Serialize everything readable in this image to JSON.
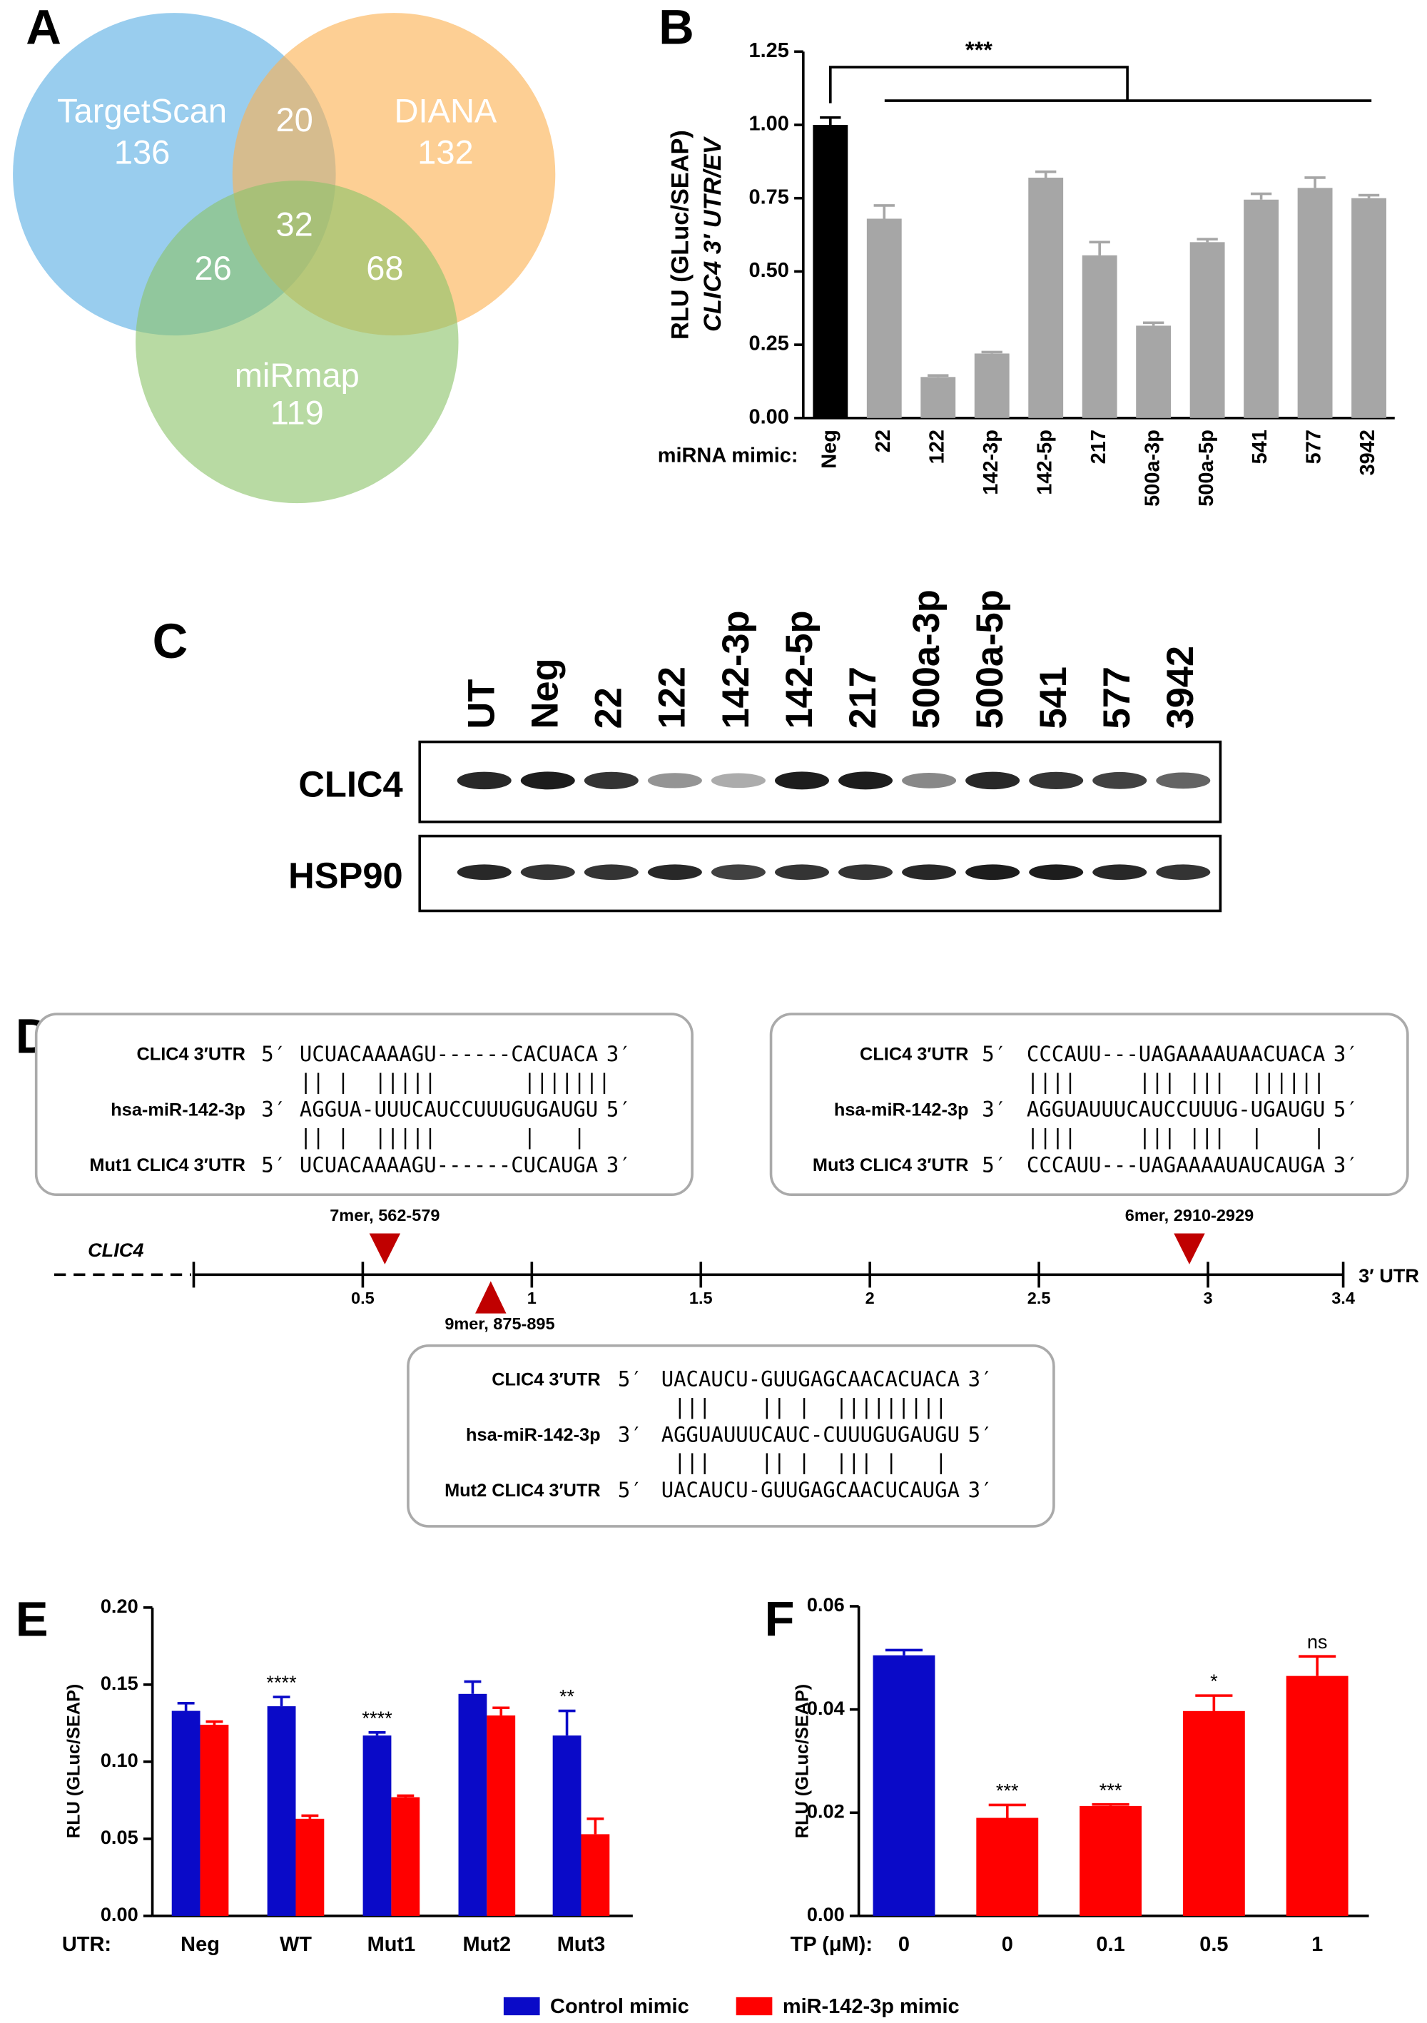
{
  "panel_labels": [
    "A",
    "B",
    "C",
    "D",
    "E",
    "F"
  ],
  "chart_data": [
    {
      "type": "venn",
      "sets": [
        {
          "name": "TargetScan",
          "value": 136,
          "color": "#5aaee3"
        },
        {
          "name": "DIANA",
          "value": 132,
          "color": "#fbb253"
        },
        {
          "name": "miRmap",
          "value": 119,
          "color": "#8cc46a"
        }
      ],
      "overlaps": [
        20,
        26,
        68,
        32
      ]
    },
    {
      "type": "bar",
      "ylabel": [
        "RLU (GLuc/SEAP)",
        "CLIC4 3′ UTR/EV"
      ],
      "xlabel": "miRNA mimic:",
      "categories": [
        "Neg",
        "22",
        "122",
        "142-3p",
        "142-5p",
        "217",
        "500a-3p",
        "500a-5p",
        "541",
        "577",
        "3942"
      ],
      "values": [
        1.0,
        0.68,
        0.14,
        0.22,
        0.82,
        0.555,
        0.315,
        0.6,
        0.745,
        0.785,
        0.75
      ],
      "errors": [
        0.025,
        0.045,
        0.005,
        0.005,
        0.02,
        0.045,
        0.01,
        0.01,
        0.02,
        0.035,
        0.01
      ],
      "colors": [
        "#000000",
        "#a6a6a6",
        "#a6a6a6",
        "#a6a6a6",
        "#a6a6a6",
        "#a6a6a6",
        "#a6a6a6",
        "#a6a6a6",
        "#a6a6a6",
        "#a6a6a6",
        "#a6a6a6"
      ],
      "annotation": "***",
      "ylim": [
        0,
        1.25
      ],
      "yticks": [
        {
          "value": 0,
          "label": "0.00"
        },
        {
          "value": 0.25,
          "label": "0.25"
        },
        {
          "value": 0.5,
          "label": "0.50"
        },
        {
          "value": 0.75,
          "label": "0.75"
        },
        {
          "value": 1,
          "label": "1.00"
        },
        {
          "value": 1.25,
          "label": "1.25"
        }
      ]
    },
    {
      "type": "bar",
      "ylabel": [
        "RLU (GLuc/SEAP)"
      ],
      "xlabel": "UTR:",
      "categories": [
        "Neg",
        "WT",
        "Mut1",
        "Mut2",
        "Mut3"
      ],
      "series": [
        {
          "name": "Control mimic",
          "color": "#0a0ac8",
          "values": [
            0.133,
            0.136,
            0.117,
            0.144,
            0.117
          ],
          "errors": [
            0.005,
            0.006,
            0.002,
            0.008,
            0.016
          ]
        },
        {
          "name": "miR-142-3p mimic",
          "color": "#ff0000",
          "values": [
            0.124,
            0.063,
            0.077,
            0.13,
            0.053
          ],
          "errors": [
            0.002,
            0.002,
            0.001,
            0.005,
            0.01
          ]
        }
      ],
      "annotations": [
        null,
        "****",
        "****",
        null,
        "**"
      ],
      "ylim": [
        0,
        0.2
      ],
      "yticks": [
        {
          "value": 0,
          "label": "0.00"
        },
        {
          "value": 0.05,
          "label": "0.05"
        },
        {
          "value": 0.1,
          "label": "0.10"
        },
        {
          "value": 0.15,
          "label": "0.15"
        },
        {
          "value": 0.2,
          "label": "0.20"
        }
      ]
    },
    {
      "type": "bar",
      "ylabel": [
        "RLU (GLuc/SEAP)"
      ],
      "xlabel": "TP (μM):",
      "categories": [
        "0",
        "0",
        "0.1",
        "0.5",
        "1"
      ],
      "values": [
        0.0505,
        0.019,
        0.0213,
        0.0397,
        0.0465
      ],
      "errors": [
        0.001,
        0.0025,
        0.0003,
        0.003,
        0.0038
      ],
      "colors": [
        "#0a0ac8",
        "#ff0000",
        "#ff0000",
        "#ff0000",
        "#ff0000"
      ],
      "annotations": [
        null,
        "***",
        "***",
        "*",
        "ns"
      ],
      "ylim": [
        0,
        0.06
      ],
      "yticks": [
        {
          "value": 0,
          "label": "0.00"
        },
        {
          "value": 0.02,
          "label": "0.02"
        },
        {
          "value": 0.04,
          "label": "0.04"
        },
        {
          "value": 0.06,
          "label": "0.06"
        }
      ]
    }
  ],
  "blot": {
    "lanes": [
      "UT",
      "Neg",
      "22",
      "122",
      "142-3p",
      "142-5p",
      "217",
      "500a-3p",
      "500a-5p",
      "541",
      "577",
      "3942"
    ],
    "rows": [
      "CLIC4",
      "HSP90"
    ]
  },
  "diagram": {
    "boxes": [
      {
        "lines": [
          [
            "CLIC4 3′UTR",
            "5′",
            "UCUACAAAAGU------CACUACA",
            "3′"
          ],
          "|| |  |||||       |||||||",
          [
            "hsa-miR-142-3p",
            "3′",
            "AGGUA-UUUCAUCCUUUGUGAUGU",
            "5′"
          ],
          "|| |  |||||       |   |",
          [
            "Mut1 CLIC4 3′UTR",
            "5′",
            "UCUACAAAAGU------CUCAUGA",
            "3′"
          ]
        ]
      },
      {
        "lines": [
          [
            "CLIC4 3′UTR",
            "5′",
            "CCCAUU---UAGAAAAUAACUACA",
            "3′"
          ],
          "||||     ||| |||  ||||||",
          [
            "hsa-miR-142-3p",
            "3′",
            "AGGUAUUUCAUCCUUUG-UGAUGU",
            "5′"
          ],
          "||||     ||| |||  |    |",
          [
            "Mut3 CLIC4 3′UTR",
            "5′",
            "CCCAUU---UAGAAAAUAUCAUGA",
            "3′"
          ]
        ]
      },
      {
        "lines": [
          [
            "CLIC4 3′UTR",
            "5′",
            "UACAUCU-GUUGAGCAACACUACA",
            "3′"
          ],
          " |||    || |  |||||||||",
          [
            "hsa-miR-142-3p",
            "3′",
            "AGGUAUUUCAUC-CUUUGUGAUGU",
            "5′"
          ],
          " |||    || |  ||| |   |",
          [
            "Mut2 CLIC4 3′UTR",
            "5′",
            "UACAUCU-GUUGAGCAACUCAUGA",
            "3′"
          ]
        ]
      }
    ],
    "gene": "CLIC4",
    "ticks": [
      0.5,
      1,
      1.5,
      2,
      2.5,
      3,
      3.4
    ],
    "end_label": "3′ UTR",
    "sites": [
      "7mer, 562-579",
      "9mer, 875-895",
      "6mer, 2910-2929"
    ]
  }
}
